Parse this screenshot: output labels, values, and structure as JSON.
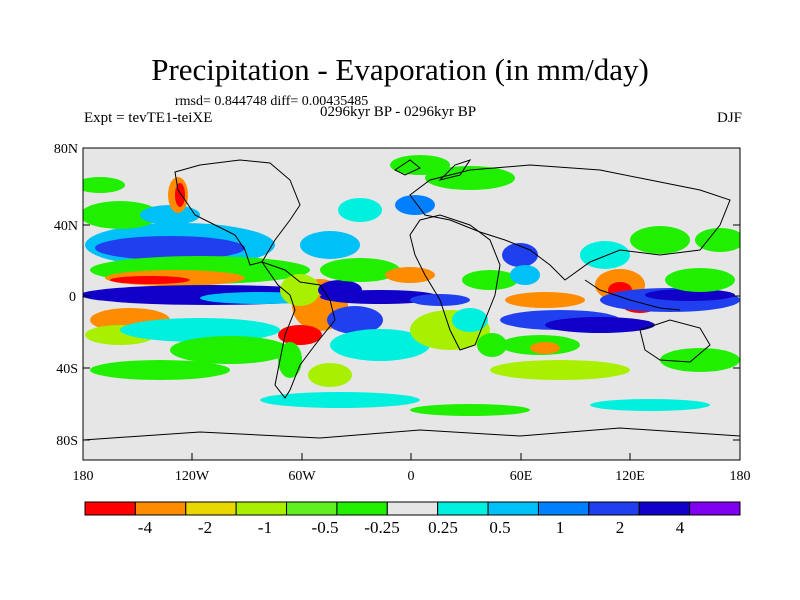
{
  "title": "Precipitation - Evaporation (in mm/day)",
  "stats": "rmsd= 0.844748 diff= 0.00435485",
  "experiment": "Expt = tevTE1-teiXE",
  "period": "0296kyr BP - 0296kyr BP",
  "season": "DJF",
  "axes": {
    "lat_ticks": [
      "80N",
      "40N",
      "0",
      "40S",
      "80S"
    ],
    "lon_ticks": [
      "180",
      "120W",
      "60W",
      "0",
      "60E",
      "120E",
      "180"
    ]
  },
  "colorbar": {
    "colors": [
      "#ff0000",
      "#ff8c00",
      "#e8d800",
      "#a8f000",
      "#60f020",
      "#20f000",
      "#e6e6e6",
      "#00f0e0",
      "#00c0f8",
      "#0080ff",
      "#2040f0",
      "#1000c8",
      "#8000f0"
    ],
    "labels": [
      "-4",
      "-2",
      "-1",
      "-0.5",
      "-0.25",
      "0.25",
      "0.5",
      "1",
      "2",
      "4"
    ]
  }
}
